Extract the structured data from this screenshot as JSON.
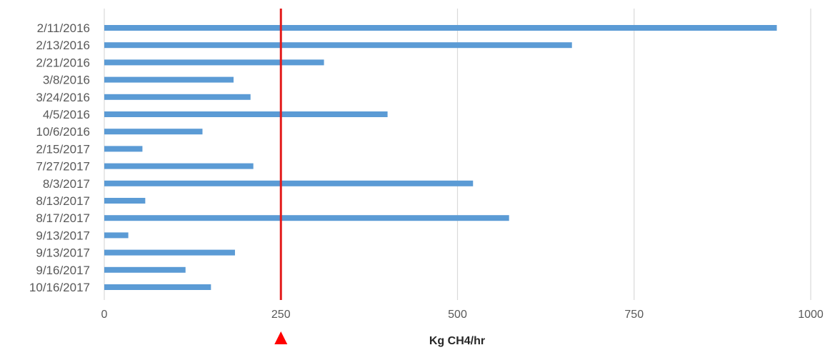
{
  "chart_data": {
    "type": "bar",
    "orientation": "horizontal",
    "categories": [
      "2/11/2016",
      "2/13/2016",
      "2/21/2016",
      "3/8/2016",
      "3/24/2016",
      "4/5/2016",
      "10/6/2016",
      "2/15/2017",
      "7/27/2017",
      "8/3/2017",
      "8/13/2017",
      "8/17/2017",
      "9/13/2017",
      "9/13/2017",
      "9/16/2017",
      "10/16/2017"
    ],
    "values": [
      952,
      662,
      311,
      183,
      207,
      401,
      139,
      54,
      211,
      522,
      58,
      573,
      34,
      185,
      115,
      151
    ],
    "xlabel": "Kg CH4/hr",
    "xlim": [
      0,
      1000
    ],
    "xticks": [
      0,
      250,
      500,
      750,
      1000
    ],
    "grid": "vertical",
    "bar_color": "#5b9bd5",
    "reference_line": {
      "value": 250,
      "color": "#e31b1b"
    },
    "marker": {
      "value": 250,
      "shape": "triangle-up",
      "color": "#ff0000"
    }
  }
}
